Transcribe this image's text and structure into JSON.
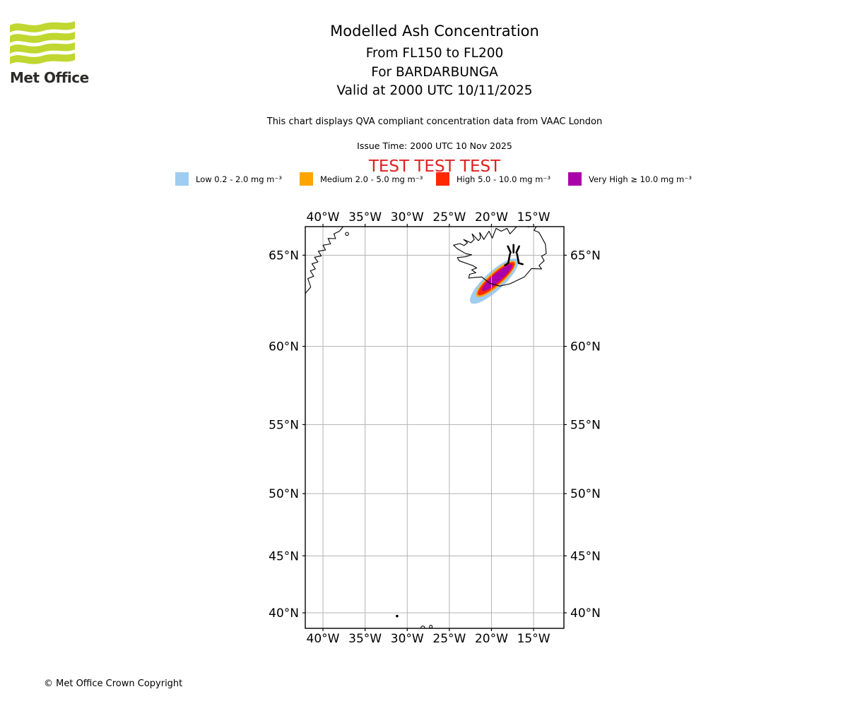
{
  "logo": {
    "brand": "Met Office",
    "wave_color": "#bfd730",
    "text_color": "#2d2c2a"
  },
  "header": {
    "title": "Modelled Ash Concentration",
    "subtitle_lines": [
      "From FL150 to FL200",
      "For BARDARBUNGA",
      "Valid at 2000 UTC 10/11/2025"
    ],
    "description": "This chart displays QVA compliant concentration data from VAAC London",
    "issue_time": "Issue Time: 2000 UTC 10 Nov 2025",
    "test_banner": "TEST TEST TEST",
    "test_banner_color": "#e02020"
  },
  "legend": {
    "items": [
      {
        "label": "Low 0.2 - 2.0 mg m⁻³",
        "color": "#9fccf1"
      },
      {
        "label": "Medium 2.0 - 5.0 mg m⁻³",
        "color": "#ffa400"
      },
      {
        "label": "High 5.0 - 10.0 mg m⁻³",
        "color": "#ff2800"
      },
      {
        "label": "Very High ≥ 10.0 mg m⁻³",
        "color": "#aa00aa"
      }
    ]
  },
  "footer": {
    "copyright": "© Met Office Crown Copyright"
  },
  "chart_data": {
    "type": "geo-contour-map",
    "title": "Modelled Ash Concentration",
    "flight_levels": "FL150 to FL200",
    "volcano_name": "BARDARBUNGA",
    "valid_time": "2000 UTC 10/11/2025",
    "projection": "mercator",
    "lon_range": [
      -42.1,
      -11.4
    ],
    "lat_range": [
      38.57,
      66.4
    ],
    "grid_lons": [
      -40,
      -35,
      -30,
      -25,
      -20,
      -15
    ],
    "grid_lats": [
      65,
      60,
      55,
      50,
      45,
      40
    ],
    "x_tick_labels": [
      "40°W",
      "35°W",
      "30°W",
      "25°W",
      "20°W",
      "15°W"
    ],
    "y_tick_labels": [
      "65°N",
      "60°N",
      "55°N",
      "50°N",
      "45°N",
      "40°N"
    ],
    "grid_color": "#b3b3b3",
    "coast_color": "#000000",
    "volcano": {
      "name": "BARDARBUNGA",
      "lon": -17.3,
      "lat": 64.63
    },
    "plume_bands": [
      {
        "band": "Low",
        "range_mg_m3": [
          0.2,
          2.0
        ],
        "color": "#9fccf1",
        "from": [
          -22.45,
          62.5
        ],
        "to": [
          -16.9,
          64.78
        ],
        "half_width_deg": 0.5
      },
      {
        "band": "Medium",
        "range_mg_m3": [
          2.0,
          5.0
        ],
        "color": "#ffa400",
        "from": [
          -21.75,
          62.85
        ],
        "to": [
          -17.2,
          64.67
        ],
        "half_width_deg": 0.37
      },
      {
        "band": "High",
        "range_mg_m3": [
          5.0,
          10.0
        ],
        "color": "#ff2800",
        "from": [
          -21.6,
          62.93
        ],
        "to": [
          -17.3,
          64.62
        ],
        "half_width_deg": 0.3
      },
      {
        "band": "Very High",
        "range_mg_m3": [
          10.0,
          null
        ],
        "color": "#aa00aa",
        "from": [
          -21.1,
          63.15
        ],
        "to": [
          -17.55,
          64.52
        ],
        "half_width_deg": 0.22
      }
    ],
    "coastlines": {
      "iceland": [
        [
          -22.7,
          63.82
        ],
        [
          -22.6,
          64.02
        ],
        [
          -21.85,
          64.1
        ],
        [
          -22.35,
          64.25
        ],
        [
          -21.75,
          64.35
        ],
        [
          -22.25,
          64.48
        ],
        [
          -23.85,
          64.72
        ],
        [
          -24.05,
          64.88
        ],
        [
          -23.1,
          64.92
        ],
        [
          -22.35,
          65.02
        ],
        [
          -23.05,
          65.08
        ],
        [
          -24.05,
          65.32
        ],
        [
          -24.5,
          65.5
        ],
        [
          -23.75,
          65.58
        ],
        [
          -23.25,
          65.48
        ],
        [
          -22.85,
          65.62
        ],
        [
          -23.3,
          65.78
        ],
        [
          -22.45,
          65.62
        ],
        [
          -22.05,
          65.78
        ],
        [
          -22.3,
          66.05
        ],
        [
          -21.55,
          65.72
        ],
        [
          -21.3,
          65.85
        ],
        [
          -21.4,
          66.12
        ],
        [
          -20.9,
          65.78
        ],
        [
          -20.3,
          66.18
        ],
        [
          -19.9,
          65.85
        ],
        [
          -19.45,
          66.32
        ],
        [
          -18.85,
          66.18
        ],
        [
          -18.15,
          66.32
        ],
        [
          -17.8,
          66.05
        ],
        [
          -17.05,
          66.38
        ],
        [
          -16.4,
          66.62
        ],
        [
          -15.65,
          66.38
        ],
        [
          -14.55,
          66.48
        ],
        [
          -14.95,
          66.22
        ],
        [
          -14.35,
          66.12
        ],
        [
          -13.6,
          65.55
        ],
        [
          -13.5,
          65.08
        ],
        [
          -14.05,
          64.95
        ],
        [
          -13.75,
          64.72
        ],
        [
          -14.35,
          64.48
        ],
        [
          -14.05,
          64.3
        ],
        [
          -15.25,
          64.32
        ],
        [
          -16.1,
          63.88
        ],
        [
          -17.8,
          63.52
        ],
        [
          -19.05,
          63.4
        ],
        [
          -20.2,
          63.55
        ],
        [
          -21.15,
          63.88
        ],
        [
          -22.05,
          63.85
        ],
        [
          -22.7,
          63.82
        ]
      ],
      "greenland": [
        [
          -37.6,
          66.4
        ],
        [
          -38.05,
          66.18
        ],
        [
          -38.7,
          66.05
        ],
        [
          -38.5,
          65.82
        ],
        [
          -39.4,
          65.83
        ],
        [
          -39.1,
          65.56
        ],
        [
          -40.0,
          65.5
        ],
        [
          -39.7,
          65.26
        ],
        [
          -40.55,
          65.2
        ],
        [
          -40.2,
          64.96
        ],
        [
          -41.0,
          64.9
        ],
        [
          -40.6,
          64.66
        ],
        [
          -41.3,
          64.56
        ],
        [
          -40.9,
          64.3
        ],
        [
          -41.5,
          64.2
        ],
        [
          -41.1,
          63.92
        ],
        [
          -41.8,
          63.8
        ],
        [
          -41.45,
          63.35
        ],
        [
          -42.1,
          63.0
        ]
      ],
      "greenland_island": {
        "lon": -37.15,
        "lat": 66.05,
        "r": 2.2
      },
      "azores": [
        {
          "lon": -31.2,
          "lat": 39.7,
          "r": 1.3,
          "filled": true
        },
        {
          "lon": -28.15,
          "lat": 38.62,
          "r": 2.6,
          "filled": false
        },
        {
          "lon": -27.2,
          "lat": 38.72,
          "r": 2.0,
          "filled": false
        }
      ]
    }
  }
}
